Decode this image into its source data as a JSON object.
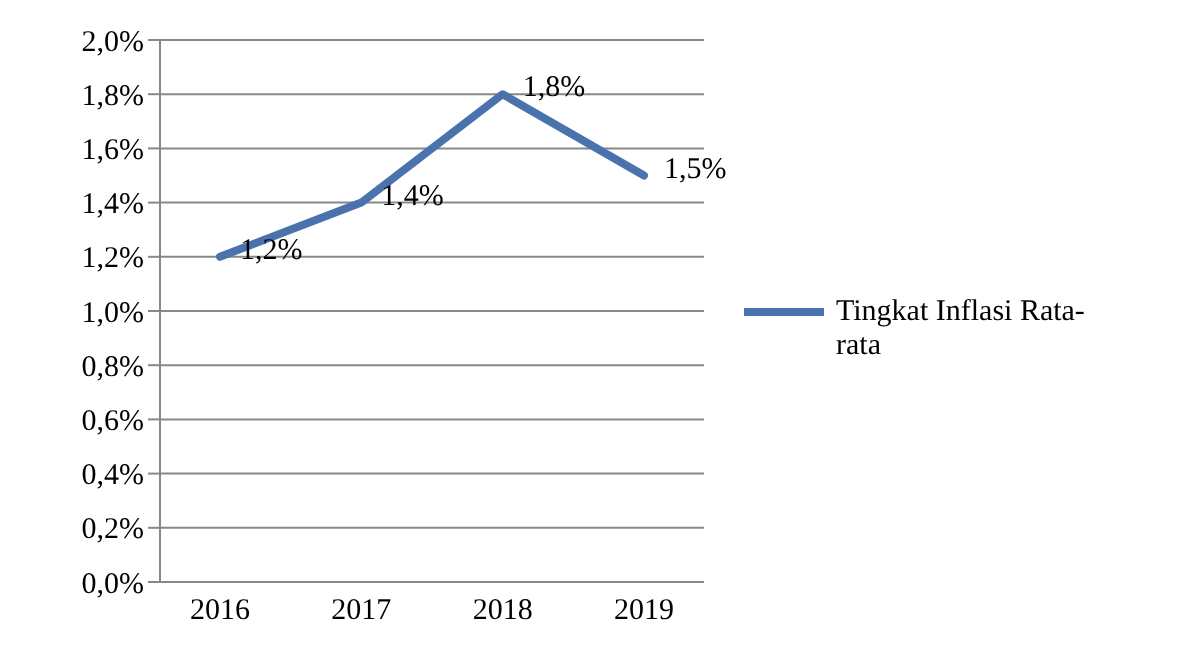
{
  "chart_data": {
    "type": "line",
    "categories": [
      "2016",
      "2017",
      "2018",
      "2019"
    ],
    "series": [
      {
        "name": "Tingkat Inflasi Rata-rata",
        "color": "#4a72ac",
        "values": [
          1.2,
          1.4,
          1.8,
          1.5
        ],
        "value_labels": [
          "1,2%",
          "1,4%",
          "1,8%",
          "1,5%"
        ]
      }
    ],
    "ylim": [
      0,
      2
    ],
    "yticks": [
      {
        "value": 0,
        "label": "0,0%"
      },
      {
        "value": 0.2,
        "label": "0,2%"
      },
      {
        "value": 0.4,
        "label": "0,4%"
      },
      {
        "value": 0.6,
        "label": "0,6%"
      },
      {
        "value": 0.8,
        "label": "0,8%"
      },
      {
        "value": 1,
        "label": "1,0%"
      },
      {
        "value": 1.2,
        "label": "1,2%"
      },
      {
        "value": 1.4,
        "label": "1,4%"
      },
      {
        "value": 1.6,
        "label": "1,6%"
      },
      {
        "value": 1.8,
        "label": "1,8%"
      },
      {
        "value": 2,
        "label": "2,0%"
      }
    ],
    "grid": "y",
    "legend": "right",
    "marker": "none",
    "line_style": "solid"
  }
}
